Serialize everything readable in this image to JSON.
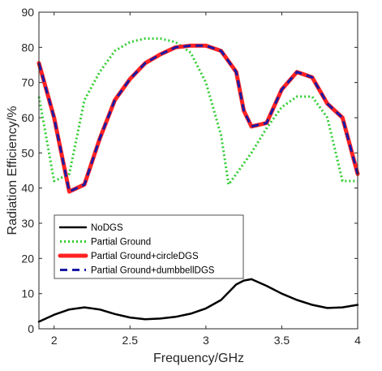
{
  "chart_data": {
    "type": "line",
    "title": "",
    "xlabel": "Frequency/GHz",
    "ylabel": "Radiation Efficiency/%",
    "xlim": [
      1.9,
      4.0
    ],
    "ylim": [
      0,
      90
    ],
    "xticks": [
      2,
      2.5,
      3,
      3.5,
      4
    ],
    "yticks": [
      0,
      10,
      20,
      30,
      40,
      50,
      60,
      70,
      80,
      90
    ],
    "xtick_labels": [
      "2",
      "2.5",
      "3",
      "3.5",
      "4"
    ],
    "ytick_labels": [
      "0",
      "10",
      "20",
      "30",
      "40",
      "50",
      "60",
      "70",
      "80",
      "90"
    ],
    "grid": false,
    "legend_position": "lower-left inside",
    "series": [
      {
        "name": "NoDGS",
        "color": "#000000",
        "style": "solid",
        "x": [
          1.9,
          2.0,
          2.1,
          2.2,
          2.3,
          2.4,
          2.5,
          2.6,
          2.7,
          2.8,
          2.9,
          3.0,
          3.1,
          3.2,
          3.25,
          3.3,
          3.4,
          3.5,
          3.6,
          3.7,
          3.8,
          3.9,
          4.0
        ],
        "values": [
          2.0,
          4.0,
          5.5,
          6.1,
          5.5,
          4.2,
          3.2,
          2.7,
          2.9,
          3.4,
          4.3,
          5.8,
          8.2,
          12.6,
          13.7,
          14.1,
          12.2,
          10.0,
          8.2,
          6.8,
          5.9,
          6.1,
          6.8
        ]
      },
      {
        "name": "Partial Ground",
        "color": "#33cc33",
        "style": "dotted",
        "x": [
          1.9,
          2.0,
          2.1,
          2.2,
          2.3,
          2.4,
          2.5,
          2.6,
          2.7,
          2.8,
          2.9,
          3.0,
          3.1,
          3.15,
          3.2,
          3.3,
          3.4,
          3.5,
          3.6,
          3.7,
          3.8,
          3.9,
          4.0
        ],
        "values": [
          66,
          42,
          44,
          65,
          73,
          79,
          81.5,
          82.5,
          82.5,
          81.5,
          78.5,
          70,
          55,
          41,
          44,
          50,
          57,
          63,
          66,
          66,
          60,
          42,
          42
        ]
      },
      {
        "name": "Partial Ground+circleDGS",
        "color": "#ff2222",
        "style": "solid",
        "x": [
          1.9,
          2.0,
          2.1,
          2.2,
          2.3,
          2.4,
          2.5,
          2.6,
          2.7,
          2.8,
          2.9,
          3.0,
          3.1,
          3.2,
          3.25,
          3.3,
          3.4,
          3.5,
          3.6,
          3.7,
          3.8,
          3.9,
          4.0
        ],
        "values": [
          75.5,
          60,
          39,
          41,
          54,
          65,
          71,
          75.5,
          78,
          80,
          80.5,
          80.5,
          79,
          73,
          62,
          57.5,
          58.5,
          68,
          73,
          71.5,
          64,
          60,
          44
        ]
      },
      {
        "name": "Partial Ground+dumbbellDGS",
        "color": "#1a1aa6",
        "style": "dashed",
        "x": [
          1.9,
          2.0,
          2.1,
          2.2,
          2.3,
          2.4,
          2.5,
          2.6,
          2.7,
          2.8,
          2.9,
          3.0,
          3.1,
          3.2,
          3.25,
          3.3,
          3.4,
          3.5,
          3.6,
          3.7,
          3.8,
          3.9,
          4.0
        ],
        "values": [
          75.5,
          60,
          39,
          41,
          54,
          65,
          71,
          75.5,
          78,
          80,
          80.5,
          80.5,
          79,
          73,
          62,
          57.5,
          58.5,
          68,
          73,
          71.5,
          64,
          60,
          44
        ]
      }
    ]
  }
}
